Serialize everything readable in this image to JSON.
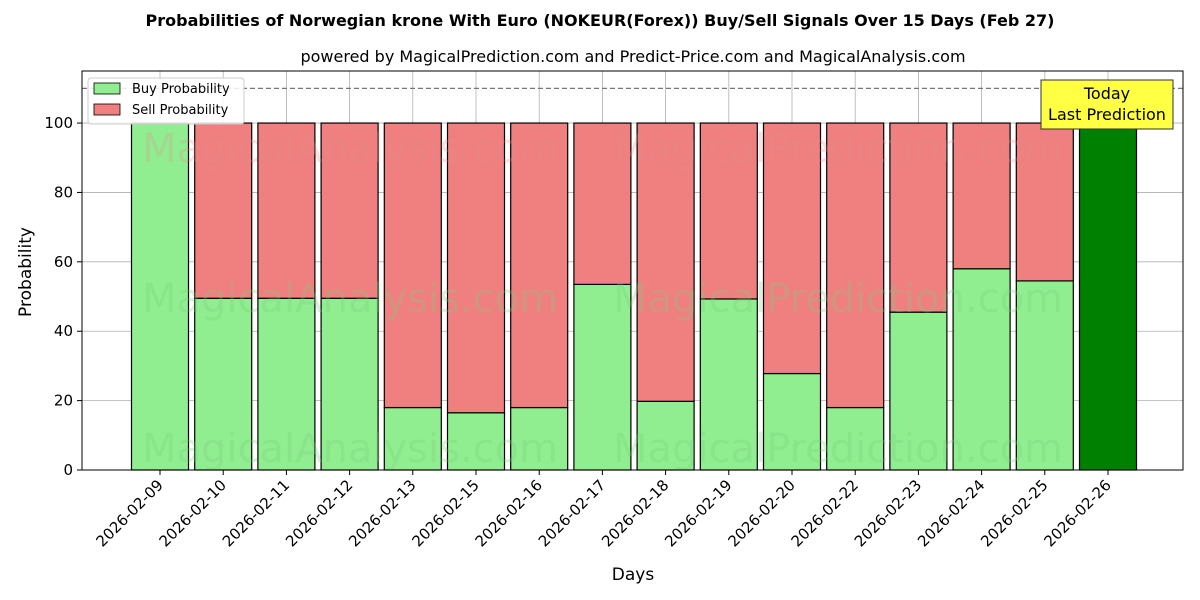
{
  "title": "Probabilities of Norwegian krone With Euro (NOKEUR(Forex)) Buy/Sell Signals Over 15 Days (Feb 27)",
  "subtitle": "powered by MagicalPrediction.com and Predict-Price.com and MagicalAnalysis.com",
  "watermarks": [
    "MagicalAnalysis.com",
    "MagicalPrediction.com"
  ],
  "annotation": {
    "line1": "Today",
    "line2": "Last Prediction"
  },
  "colors": {
    "buy": "#90ee90",
    "sell": "#f08080",
    "today_buy": "#008000",
    "annotation_bg": "#ffff44",
    "grid": "#b0b0b0"
  },
  "chart_data": {
    "type": "bar",
    "stacked": true,
    "xlabel": "Days",
    "ylabel": "Probability",
    "ylim": [
      0,
      115
    ],
    "yticks": [
      0,
      20,
      40,
      60,
      80,
      100
    ],
    "reference_line": 110,
    "grid": true,
    "legend_position": "top-left",
    "categories": [
      "2026-02-09",
      "2026-02-10",
      "2026-02-11",
      "2026-02-12",
      "2026-02-13",
      "2026-02-15",
      "2026-02-16",
      "2026-02-17",
      "2026-02-18",
      "2026-02-19",
      "2026-02-20",
      "2026-02-22",
      "2026-02-23",
      "2026-02-24",
      "2026-02-25",
      "2026-02-26"
    ],
    "series": [
      {
        "name": "Buy Probability",
        "values": [
          100,
          49.5,
          49.5,
          49.5,
          18,
          16.5,
          18,
          53.5,
          19.8,
          49.3,
          27.8,
          18,
          45.5,
          58,
          54.5,
          100
        ]
      },
      {
        "name": "Sell Probability",
        "values": [
          0,
          50.5,
          50.5,
          50.5,
          82,
          83.5,
          82,
          46.5,
          80.2,
          50.7,
          72.2,
          82,
          54.5,
          42,
          45.5,
          0
        ]
      }
    ],
    "highlight_category": "2026-02-26"
  }
}
